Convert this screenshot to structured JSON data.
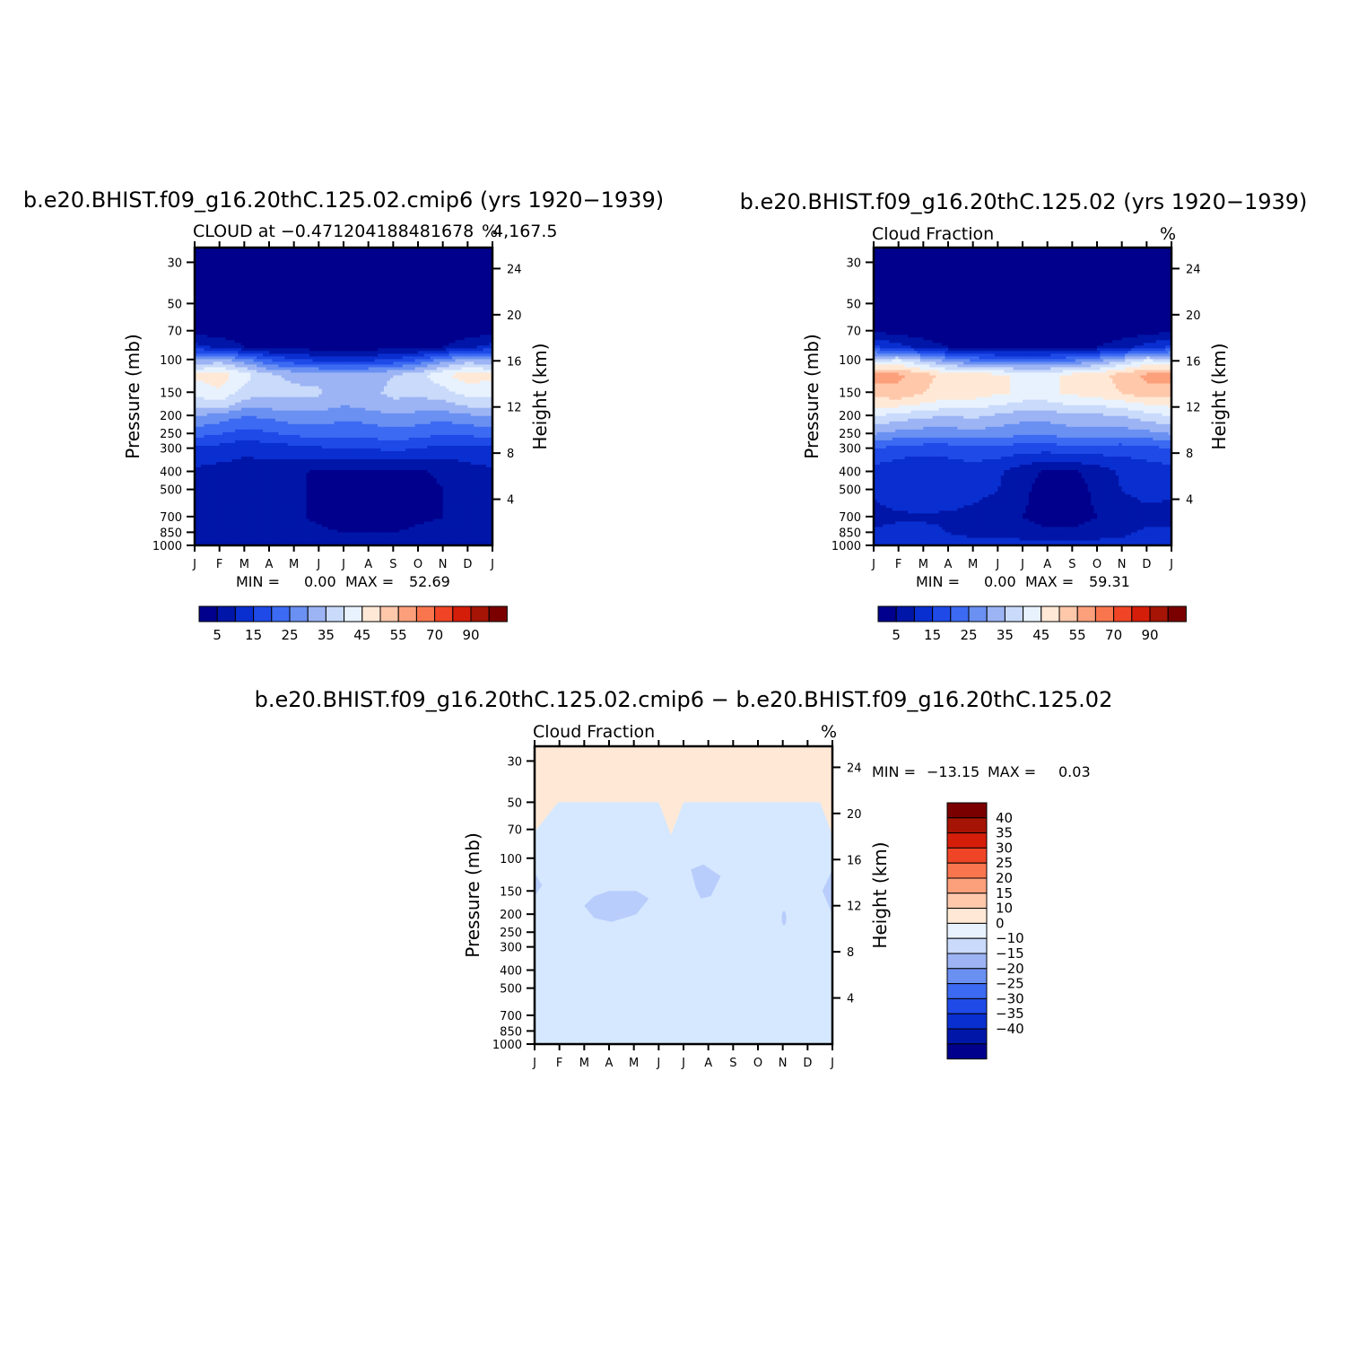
{
  "colors": {
    "abs_scale": [
      "#00008c",
      "#0016a8",
      "#0a2fd0",
      "#1f4ae8",
      "#3c6af2",
      "#6a90f2",
      "#9cb4f4",
      "#c9dafa",
      "#e8f2ff",
      "#ffe9d6",
      "#ffc8ab",
      "#fca07c",
      "#f9754e",
      "#ef4526",
      "#d51e0a",
      "#a51404",
      "#7a0000"
    ],
    "diff_scale": [
      "#00008c",
      "#0016a8",
      "#0a2fd0",
      "#1f4ae8",
      "#3c6af2",
      "#6a90f2",
      "#9cb4f4",
      "#c9dafa",
      "#e8f2ff",
      "#ffe9d6",
      "#ffc8ab",
      "#fca07c",
      "#f9754e",
      "#ef4526",
      "#d51e0a",
      "#a51404",
      "#7a0000"
    ],
    "diff_above": "#ffe9d6",
    "diff_main": "#d5e8ff",
    "diff_blob": "#b8cdfc"
  },
  "chart_data": [
    {
      "type": "heatmap",
      "title": "b.e20.BHIST.f09_g16.20thC.125.02.cmip6  (yrs  1920−1939)",
      "subtitle_left": "CLOUD  at  −0.471204188481678",
      "subtitle_right": "4,167.5",
      "units": "%",
      "ylabel": "Pressure  (mb)",
      "y2label": "Height  (km)",
      "x_ticks": [
        "J",
        "F",
        "M",
        "A",
        "M",
        "J",
        "J",
        "A",
        "S",
        "O",
        "N",
        "D",
        "J"
      ],
      "y_ticks": [
        30,
        50,
        70,
        100,
        150,
        200,
        250,
        300,
        400,
        500,
        700,
        850,
        1000
      ],
      "y2_ticks": [
        24,
        20,
        16,
        12,
        8,
        4
      ],
      "ylim": [
        1000,
        25
      ],
      "min_label": "MIN  =",
      "min_value": "0.00",
      "max_label": "MAX  =",
      "max_value": "52.69",
      "colorbar_labels": [
        "5",
        "15",
        "25",
        "35",
        "45",
        "55",
        "70",
        "90"
      ],
      "field": [
        {
          "p": 25,
          "values": [
            0,
            0,
            0,
            0,
            0,
            0,
            0,
            0,
            0,
            0,
            0,
            0,
            0
          ]
        },
        {
          "p": 50,
          "values": [
            0,
            0,
            0,
            0,
            0,
            0,
            0,
            0,
            0,
            0,
            0,
            0,
            0
          ]
        },
        {
          "p": 70,
          "values": [
            3,
            2,
            2,
            1,
            1,
            1,
            1,
            1,
            1,
            1,
            1,
            2,
            3
          ]
        },
        {
          "p": 85,
          "values": [
            12,
            9,
            5,
            3,
            3,
            2,
            2,
            2,
            3,
            3,
            5,
            9,
            12
          ]
        },
        {
          "p": 100,
          "values": [
            30,
            32,
            27,
            20,
            16,
            14,
            13,
            14,
            16,
            20,
            27,
            32,
            30
          ]
        },
        {
          "p": 120,
          "values": [
            46,
            48,
            42,
            36,
            34,
            33,
            32,
            33,
            35,
            38,
            44,
            48,
            46
          ]
        },
        {
          "p": 150,
          "values": [
            42,
            44,
            38,
            36,
            36,
            36,
            30,
            34,
            36,
            36,
            38,
            42,
            42
          ]
        },
        {
          "p": 175,
          "values": [
            36,
            38,
            32,
            32,
            33,
            33,
            30,
            32,
            34,
            33,
            33,
            36,
            36
          ]
        },
        {
          "p": 200,
          "values": [
            30,
            28,
            25,
            26,
            28,
            28,
            26,
            27,
            29,
            28,
            27,
            29,
            30
          ]
        },
        {
          "p": 250,
          "values": [
            22,
            20,
            18,
            19,
            21,
            22,
            22,
            22,
            23,
            22,
            20,
            21,
            22
          ]
        },
        {
          "p": 300,
          "values": [
            14,
            13,
            11,
            12,
            13,
            14,
            15,
            15,
            16,
            15,
            13,
            13,
            14
          ]
        },
        {
          "p": 400,
          "values": [
            9,
            8,
            8,
            8,
            6,
            4,
            4,
            4,
            4,
            4,
            6,
            8,
            9
          ]
        },
        {
          "p": 500,
          "values": [
            8,
            10,
            10,
            8,
            6,
            4,
            3,
            3,
            3,
            3,
            5,
            7,
            8
          ]
        },
        {
          "p": 700,
          "values": [
            7,
            8,
            8,
            7,
            6,
            4,
            3,
            3,
            3,
            4,
            5,
            6,
            7
          ]
        },
        {
          "p": 850,
          "values": [
            8,
            8,
            8,
            7,
            7,
            6,
            5,
            5,
            5,
            6,
            7,
            8,
            8
          ]
        },
        {
          "p": 1000,
          "values": [
            9,
            9,
            9,
            9,
            9,
            9,
            9,
            9,
            9,
            9,
            9,
            9,
            9
          ]
        }
      ]
    },
    {
      "type": "heatmap",
      "title": "b.e20.BHIST.f09_g16.20thC.125.02  (yrs  1920−1939)",
      "subtitle_left": "Cloud  Fraction",
      "subtitle_right": "",
      "units": "%",
      "ylabel": "Pressure  (mb)",
      "y2label": "Height  (km)",
      "x_ticks": [
        "J",
        "F",
        "M",
        "A",
        "M",
        "J",
        "J",
        "A",
        "S",
        "O",
        "N",
        "D",
        "J"
      ],
      "y_ticks": [
        30,
        50,
        70,
        100,
        150,
        200,
        250,
        300,
        400,
        500,
        700,
        850,
        1000
      ],
      "y2_ticks": [
        24,
        20,
        16,
        12,
        8,
        4
      ],
      "ylim": [
        1000,
        25
      ],
      "min_label": "MIN  =",
      "min_value": "0.00",
      "max_label": "MAX  =",
      "max_value": "59.31",
      "colorbar_labels": [
        "5",
        "15",
        "25",
        "35",
        "45",
        "55",
        "70",
        "90"
      ],
      "field": [
        {
          "p": 25,
          "values": [
            0,
            0,
            0,
            0,
            0,
            0,
            0,
            0,
            0,
            0,
            0,
            0,
            0
          ]
        },
        {
          "p": 50,
          "values": [
            0,
            0,
            0,
            0,
            0,
            0,
            0,
            0,
            0,
            0,
            0,
            0,
            0
          ]
        },
        {
          "p": 70,
          "values": [
            4,
            3,
            2,
            1,
            1,
            1,
            1,
            1,
            1,
            1,
            2,
            3,
            4
          ]
        },
        {
          "p": 85,
          "values": [
            16,
            12,
            8,
            5,
            4,
            3,
            3,
            3,
            4,
            5,
            8,
            12,
            16
          ]
        },
        {
          "p": 100,
          "values": [
            38,
            40,
            34,
            28,
            24,
            22,
            21,
            22,
            24,
            28,
            34,
            40,
            38
          ]
        },
        {
          "p": 120,
          "values": [
            58,
            56,
            52,
            48,
            47,
            46,
            44,
            44,
            46,
            48,
            52,
            56,
            58
          ]
        },
        {
          "p": 150,
          "values": [
            52,
            54,
            50,
            48,
            48,
            46,
            44,
            44,
            46,
            48,
            50,
            54,
            52
          ]
        },
        {
          "p": 175,
          "values": [
            46,
            46,
            44,
            42,
            42,
            40,
            38,
            38,
            40,
            40,
            42,
            44,
            46
          ]
        },
        {
          "p": 200,
          "values": [
            40,
            38,
            36,
            35,
            36,
            34,
            32,
            32,
            34,
            34,
            35,
            38,
            40
          ]
        },
        {
          "p": 250,
          "values": [
            30,
            28,
            27,
            27,
            28,
            27,
            26,
            26,
            27,
            27,
            27,
            28,
            30
          ]
        },
        {
          "p": 300,
          "values": [
            20,
            18,
            17,
            17,
            18,
            18,
            17,
            17,
            18,
            18,
            17,
            18,
            20
          ]
        },
        {
          "p": 400,
          "values": [
            13,
            11,
            10,
            12,
            13,
            11,
            7,
            4,
            4,
            7,
            11,
            12,
            13
          ]
        },
        {
          "p": 500,
          "values": [
            11,
            14,
            15,
            14,
            12,
            10,
            6,
            3,
            3,
            6,
            10,
            12,
            11
          ]
        },
        {
          "p": 700,
          "values": [
            8,
            9,
            9,
            9,
            8,
            7,
            5,
            3,
            3,
            5,
            7,
            8,
            8
          ]
        },
        {
          "p": 850,
          "values": [
            11,
            12,
            12,
            10,
            9,
            9,
            8,
            6,
            6,
            8,
            9,
            11,
            11
          ]
        },
        {
          "p": 1000,
          "values": [
            12,
            12,
            12,
            12,
            12,
            12,
            12,
            12,
            12,
            12,
            12,
            12,
            12
          ]
        }
      ]
    },
    {
      "type": "heatmap",
      "title": "b.e20.BHIST.f09_g16.20thC.125.02.cmip6  −  b.e20.BHIST.f09_g16.20thC.125.02",
      "subtitle_left": "Cloud  Fraction",
      "subtitle_right": "",
      "units": "%",
      "ylabel": "Pressure  (mb)",
      "y2label": "Height  (km)",
      "x_ticks": [
        "J",
        "F",
        "M",
        "A",
        "M",
        "J",
        "J",
        "A",
        "S",
        "O",
        "N",
        "D",
        "J"
      ],
      "y_ticks": [
        30,
        50,
        70,
        100,
        150,
        200,
        250,
        300,
        400,
        500,
        700,
        850,
        1000
      ],
      "y2_ticks": [
        24,
        20,
        16,
        12,
        8,
        4
      ],
      "ylim": [
        1000,
        25
      ],
      "min_label": "MIN  =",
      "min_value": "−13.15",
      "max_label": "MAX  =",
      "max_value": "0.03",
      "colorbar_labels": [
        "40",
        "35",
        "30",
        "25",
        "20",
        "15",
        "10",
        "0",
        "−10",
        "−15",
        "−20",
        "−25",
        "−30",
        "−35",
        "−40"
      ]
    }
  ]
}
